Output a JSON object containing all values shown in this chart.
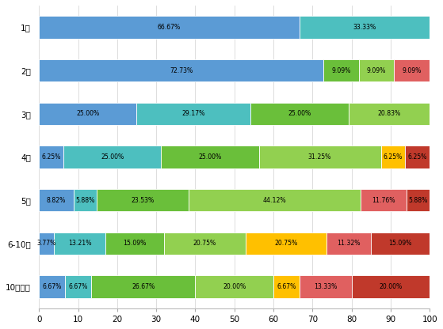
{
  "categories": [
    "1年",
    "2年",
    "3年",
    "4年",
    "5年",
    "6-10年",
    "10年以上"
  ],
  "segments": [
    [
      66.67,
      33.33,
      0,
      0,
      0,
      0,
      0
    ],
    [
      72.73,
      0,
      9.09,
      9.09,
      0,
      9.09,
      0
    ],
    [
      25.0,
      29.17,
      25.0,
      20.83,
      0,
      0,
      0
    ],
    [
      6.25,
      25.0,
      25.0,
      31.25,
      6.25,
      0,
      6.25
    ],
    [
      8.82,
      5.88,
      23.53,
      44.12,
      0,
      11.76,
      5.88
    ],
    [
      3.77,
      13.21,
      15.09,
      20.75,
      20.75,
      11.32,
      15.09
    ],
    [
      6.67,
      6.67,
      26.67,
      20.0,
      6.67,
      13.33,
      20.0
    ]
  ],
  "segment_labels": [
    [
      "66.67%",
      "33.33%",
      "",
      "",
      "",
      "",
      ""
    ],
    [
      "72.73%",
      "",
      "9.09%",
      "9.09%",
      "",
      "9.09%",
      ""
    ],
    [
      "25.00%",
      "29.17%",
      "25.00%",
      "20.83%",
      "",
      "",
      ""
    ],
    [
      "6.25%",
      "25.00%",
      "25.00%",
      "31.25%",
      "6.25%",
      "",
      "6.25%"
    ],
    [
      "8.82%",
      "5.88%",
      "23.53%",
      "44.12%",
      "",
      "11.76%",
      "5.88%"
    ],
    [
      "3.77%",
      "13.21%",
      "15.09%",
      "20.75%",
      "20.75%",
      "11.32%",
      "15.09%"
    ],
    [
      "6.67%",
      "6.67%",
      "26.67%",
      "20.00%",
      "6.67%",
      "13.33%",
      "20.00%"
    ]
  ],
  "colors": [
    "#5b9bd5",
    "#4dbfbf",
    "#6abf3a",
    "#92d050",
    "#ffc000",
    "#e06060",
    "#c0392b"
  ],
  "figsize": [
    5.59,
    4.16
  ],
  "dpi": 100,
  "bg_color": "#ffffff",
  "bar_height": 0.52,
  "xlim": [
    0,
    100
  ],
  "xticks": [
    0,
    10,
    20,
    30,
    40,
    50,
    60,
    70,
    80,
    90,
    100
  ],
  "grid_color": "#d0d0d0",
  "label_fontsize": 5.6,
  "tick_fontsize": 7.5
}
